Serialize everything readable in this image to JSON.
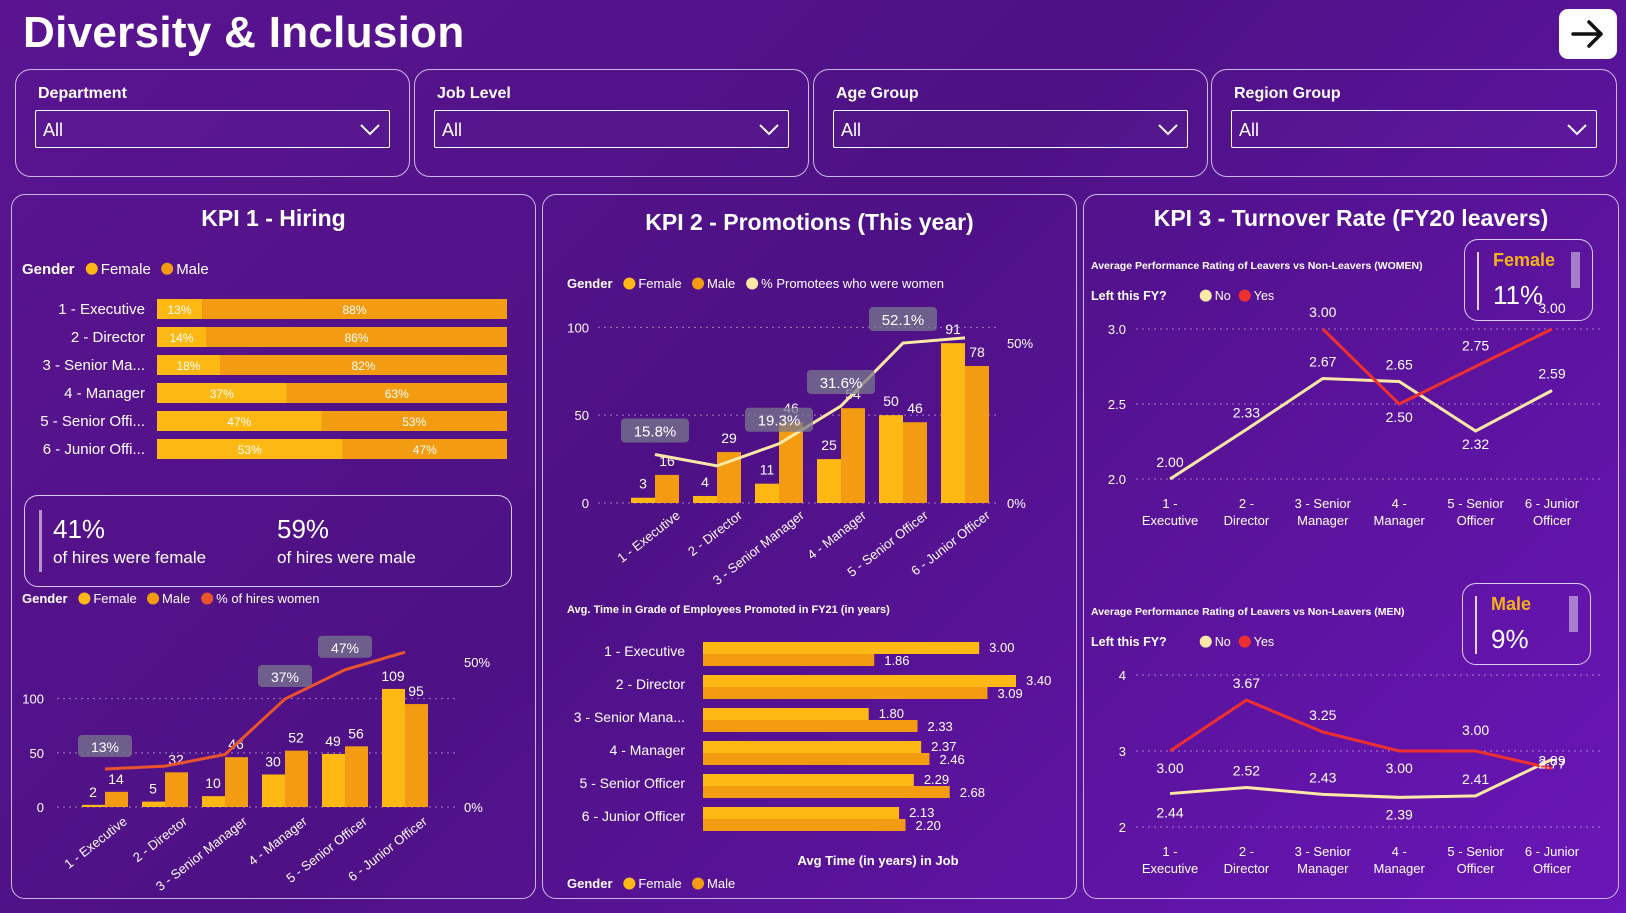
{
  "header": {
    "title": "Diversity & Inclusion"
  },
  "filters": [
    {
      "label": "Department",
      "value": "All"
    },
    {
      "label": "Job Level",
      "value": "All"
    },
    {
      "label": "Age Group",
      "value": "All"
    },
    {
      "label": "Region Group",
      "value": "All"
    }
  ],
  "colors": {
    "female": "#fdb813",
    "male": "#f39c12",
    "line_women": "#e8542b",
    "line_promo": "#fde9a6",
    "no": "#fde9a6",
    "yes": "#ed2f2f"
  },
  "kpi1": {
    "title": "KPI 1 - Hiring",
    "legend_top": {
      "title": "Gender",
      "items": [
        "Female",
        "Male"
      ]
    },
    "stacked": {
      "categories": [
        "1 - Executive",
        "2 - Director",
        "3 - Senior Ma...",
        "4 - Manager",
        "5 - Senior Offi...",
        "6 - Junior Offi..."
      ],
      "female_pct": [
        13,
        14,
        18,
        37,
        47,
        53
      ],
      "male_pct": [
        88,
        86,
        82,
        63,
        53,
        47
      ],
      "female_labels": [
        "13%",
        "14%",
        "18%",
        "37%",
        "47%",
        "53%"
      ],
      "male_labels": [
        "88%",
        "86%",
        "82%",
        "63%",
        "53%",
        "47%"
      ]
    },
    "summary": {
      "female_pct": "41%",
      "female_text": "of hires were female",
      "male_pct": "59%",
      "male_text": "of hires were male"
    },
    "legend_bottom": {
      "title": "Gender",
      "items": [
        "Female",
        "Male",
        "% of hires women"
      ]
    },
    "combo": {
      "categories": [
        "1 - Executive",
        "2 - Director",
        "3 - Senior Manager",
        "4 - Manager",
        "5 - Senior Officer",
        "6 - Junior Officer"
      ],
      "female": [
        2,
        5,
        10,
        30,
        49,
        109
      ],
      "male": [
        14,
        32,
        46,
        52,
        56,
        95
      ],
      "women_pct": [
        13,
        14,
        18,
        37,
        47,
        53
      ],
      "pct_labels": [
        "13%",
        "",
        "",
        "37%",
        "47%",
        ""
      ],
      "y_ticks": [
        "0",
        "50",
        "100"
      ],
      "y2_ticks": [
        "0%",
        "50%"
      ]
    }
  },
  "kpi2": {
    "title": "KPI 2 - Promotions (This year)",
    "legend_top": {
      "title": "Gender",
      "items": [
        "Female",
        "Male",
        "% Promotees who were women"
      ]
    },
    "combo": {
      "categories": [
        "1 - Executive",
        "2 - Director",
        "3 - Senior Manager",
        "4 - Manager",
        "5 - Senior Officer",
        "6 - Junior Officer"
      ],
      "female": [
        3,
        4,
        11,
        25,
        50,
        91
      ],
      "male": [
        16,
        29,
        46,
        54,
        46,
        78
      ],
      "women_pct": [
        15.8,
        12.1,
        19.3,
        31.6,
        52.1,
        53.8
      ],
      "pct_labels": [
        "15.8%",
        "",
        "19.3%",
        "31.6%",
        "52.1%",
        ""
      ],
      "y_ticks": [
        "0",
        "50",
        "100"
      ],
      "y2_ticks": [
        "0%",
        "50%"
      ]
    },
    "time_in_grade": {
      "title": "Avg. Time in Grade of Employees Promoted in FY21 (in years)",
      "categories": [
        "1 - Executive",
        "2 - Director",
        "3 - Senior Mana...",
        "4 - Manager",
        "5 - Senior Officer",
        "6 - Junior Officer"
      ],
      "female": [
        3.0,
        3.4,
        1.8,
        2.37,
        2.29,
        2.13
      ],
      "male": [
        1.86,
        3.09,
        2.33,
        2.46,
        2.68,
        2.2
      ],
      "female_labels": [
        "3.00",
        "3.40",
        "1.80",
        "2.37",
        "2.29",
        "2.13"
      ],
      "male_labels": [
        "1.86",
        "3.09",
        "2.33",
        "2.46",
        "2.68",
        "2.20"
      ],
      "xlabel": "Avg Time (in years) in Job"
    },
    "legend_bottom": {
      "title": "Gender",
      "items": [
        "Female",
        "Male"
      ]
    }
  },
  "kpi3": {
    "title": "KPI 3 - Turnover Rate (FY20 leavers)",
    "women": {
      "title": "Average Performance Rating of Leavers vs Non-Leavers (WOMEN)",
      "legend": {
        "title": "Left this FY?",
        "items": [
          "No",
          "Yes"
        ]
      },
      "categories": [
        [
          "1 -",
          "Executive"
        ],
        [
          "2 -",
          "Director"
        ],
        [
          "3 - Senior",
          "Manager"
        ],
        [
          "4 -",
          "Manager"
        ],
        [
          "5 - Senior",
          "Officer"
        ],
        [
          "6 - Junior",
          "Officer"
        ]
      ],
      "no": [
        2.0,
        2.33,
        2.67,
        2.65,
        2.32,
        2.59
      ],
      "yes": [
        null,
        null,
        3.0,
        2.5,
        2.75,
        3.0
      ],
      "no_labels": [
        "2.00",
        "2.33",
        "2.67",
        "2.65",
        "2.32",
        "2.59"
      ],
      "yes_labels": [
        "",
        "",
        "3.00",
        "2.50",
        "2.75",
        "3.00"
      ],
      "y_ticks": [
        "2.0",
        "2.5",
        "3.0"
      ],
      "card": {
        "label": "Female",
        "value": "11%"
      }
    },
    "men": {
      "title": "Average Performance Rating of Leavers vs Non-Leavers (MEN)",
      "legend": {
        "title": "Left this FY?",
        "items": [
          "No",
          "Yes"
        ]
      },
      "categories": [
        [
          "1 -",
          "Executive"
        ],
        [
          "2 -",
          "Director"
        ],
        [
          "3 - Senior",
          "Manager"
        ],
        [
          "4 -",
          "Manager"
        ],
        [
          "5 - Senior",
          "Officer"
        ],
        [
          "6 - Junior",
          "Officer"
        ]
      ],
      "no": [
        2.44,
        2.52,
        2.43,
        2.39,
        2.41,
        2.89
      ],
      "yes": [
        3.0,
        3.67,
        3.25,
        3.0,
        3.0,
        2.77
      ],
      "no_labels": [
        "2.44",
        "2.52",
        "2.43",
        "2.39",
        "2.41",
        "2.89"
      ],
      "yes_labels": [
        "3.00",
        "3.67",
        "3.25",
        "3.00",
        "3.00",
        "2.77"
      ],
      "y_ticks": [
        "2",
        "3",
        "4"
      ],
      "card": {
        "label": "Male",
        "value": "9%"
      }
    }
  },
  "icons": {
    "next": "arrow-right-icon",
    "dropdown": "chevron-down-icon"
  }
}
